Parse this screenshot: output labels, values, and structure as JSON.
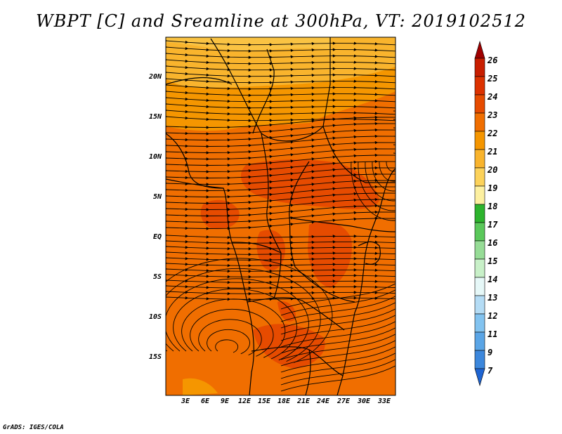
{
  "title": "WBPT [C] and Sreamline at 300hPa, VT: 2019102512",
  "credit": "GrADS: IGES/COLA",
  "map": {
    "lat_labels": [
      "20N",
      "15N",
      "10N",
      "5N",
      "EQ",
      "5S",
      "10S",
      "15S"
    ],
    "lon_labels": [
      "3E",
      "6E",
      "9E",
      "12E",
      "15E",
      "18E",
      "21E",
      "24E",
      "27E",
      "30E",
      "33E"
    ],
    "field": "wet-bulb potential temperature",
    "overlay": "streamlines",
    "level": "300hPa"
  },
  "colorbar": {
    "labels": [
      "26",
      "25",
      "24",
      "23",
      "22",
      "21",
      "20",
      "19",
      "18",
      "17",
      "16",
      "15",
      "14",
      "13",
      "12",
      "11",
      "9",
      "7"
    ],
    "colors": [
      "#a00000",
      "#c81e00",
      "#dc3200",
      "#e64b00",
      "#f06e00",
      "#f59600",
      "#f9b42d",
      "#fcd25a",
      "#fdf0a0",
      "#2db42d",
      "#5ac85a",
      "#96dc96",
      "#c8f0c8",
      "#e6f8f8",
      "#b4dcf5",
      "#82c3f0",
      "#5aa5e6",
      "#3c87dc",
      "#1e64d2"
    ]
  }
}
